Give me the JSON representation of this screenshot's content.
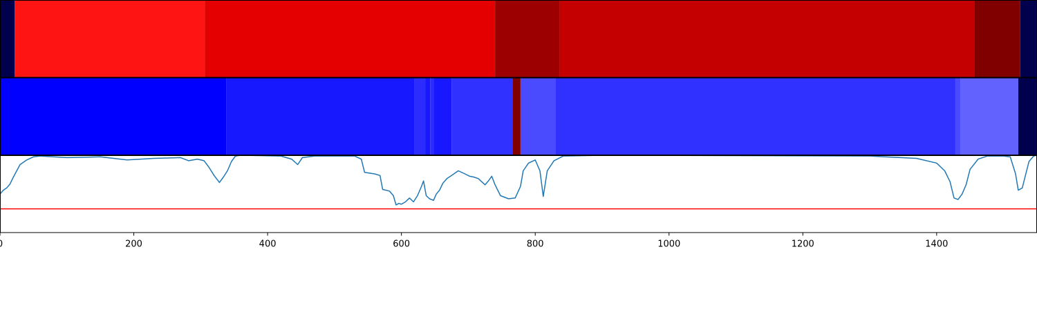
{
  "chart_data": {
    "type": "line",
    "xlim": [
      0,
      1550
    ],
    "xticks": [
      0,
      200,
      400,
      600,
      800,
      1000,
      1200,
      1400
    ],
    "grid": false,
    "legend": "none",
    "segment_tracks": [
      {
        "segments": [
          {
            "start": 0,
            "end": 22,
            "color": "#00004c"
          },
          {
            "start": 22,
            "end": 306,
            "color": "#ff1414"
          },
          {
            "start": 306,
            "end": 740,
            "color": "#e40000"
          },
          {
            "start": 740,
            "end": 836,
            "color": "#9c0000"
          },
          {
            "start": 836,
            "end": 1457,
            "color": "#c40000"
          },
          {
            "start": 1457,
            "end": 1525,
            "color": "#800000"
          },
          {
            "start": 1525,
            "end": 1550,
            "color": "#00004c"
          }
        ]
      },
      {
        "segments": [
          {
            "start": 0,
            "end": 338,
            "color": "#0000ff"
          },
          {
            "start": 338,
            "end": 619,
            "color": "#1818ff"
          },
          {
            "start": 619,
            "end": 636,
            "color": "#2c2cff"
          },
          {
            "start": 636,
            "end": 643,
            "color": "#1818ff"
          },
          {
            "start": 643,
            "end": 648,
            "color": "#2c2cff"
          },
          {
            "start": 648,
            "end": 675,
            "color": "#1818ff"
          },
          {
            "start": 675,
            "end": 766,
            "color": "#3030ff"
          },
          {
            "start": 766,
            "end": 778,
            "color": "#800000"
          },
          {
            "start": 778,
            "end": 830,
            "color": "#4a4aff"
          },
          {
            "start": 830,
            "end": 1428,
            "color": "#3030ff"
          },
          {
            "start": 1428,
            "end": 1436,
            "color": "#4a4aff"
          },
          {
            "start": 1436,
            "end": 1522,
            "color": "#6262ff"
          },
          {
            "start": 1522,
            "end": 1550,
            "color": "#00004c"
          }
        ]
      }
    ],
    "ylim": [
      0,
      1
    ],
    "threshold": {
      "y": 0.31,
      "color": "#ff0000"
    },
    "series": [
      {
        "color": "#1f77b4",
        "points": [
          [
            0,
            0.5
          ],
          [
            5,
            0.55
          ],
          [
            10,
            0.58
          ],
          [
            15,
            0.63
          ],
          [
            20,
            0.72
          ],
          [
            25,
            0.8
          ],
          [
            30,
            0.88
          ],
          [
            40,
            0.94
          ],
          [
            50,
            0.98
          ],
          [
            60,
            0.99
          ],
          [
            100,
            0.97
          ],
          [
            150,
            0.98
          ],
          [
            190,
            0.94
          ],
          [
            230,
            0.96
          ],
          [
            270,
            0.97
          ],
          [
            282,
            0.93
          ],
          [
            295,
            0.95
          ],
          [
            305,
            0.93
          ],
          [
            312,
            0.85
          ],
          [
            320,
            0.74
          ],
          [
            328,
            0.65
          ],
          [
            334,
            0.72
          ],
          [
            340,
            0.8
          ],
          [
            346,
            0.92
          ],
          [
            352,
            0.99
          ],
          [
            360,
            1.0
          ],
          [
            420,
            0.99
          ],
          [
            436,
            0.95
          ],
          [
            445,
            0.88
          ],
          [
            452,
            0.97
          ],
          [
            470,
            0.99
          ],
          [
            530,
            0.99
          ],
          [
            540,
            0.95
          ],
          [
            545,
            0.78
          ],
          [
            560,
            0.76
          ],
          [
            568,
            0.74
          ],
          [
            572,
            0.56
          ],
          [
            582,
            0.54
          ],
          [
            588,
            0.48
          ],
          [
            592,
            0.36
          ],
          [
            596,
            0.38
          ],
          [
            600,
            0.37
          ],
          [
            606,
            0.4
          ],
          [
            612,
            0.45
          ],
          [
            618,
            0.4
          ],
          [
            624,
            0.48
          ],
          [
            630,
            0.6
          ],
          [
            633,
            0.67
          ],
          [
            637,
            0.48
          ],
          [
            642,
            0.44
          ],
          [
            648,
            0.42
          ],
          [
            652,
            0.5
          ],
          [
            657,
            0.55
          ],
          [
            662,
            0.64
          ],
          [
            668,
            0.7
          ],
          [
            675,
            0.74
          ],
          [
            685,
            0.8
          ],
          [
            695,
            0.76
          ],
          [
            702,
            0.73
          ],
          [
            708,
            0.72
          ],
          [
            715,
            0.7
          ],
          [
            725,
            0.62
          ],
          [
            730,
            0.67
          ],
          [
            735,
            0.73
          ],
          [
            740,
            0.62
          ],
          [
            748,
            0.48
          ],
          [
            760,
            0.44
          ],
          [
            770,
            0.45
          ],
          [
            778,
            0.6
          ],
          [
            782,
            0.8
          ],
          [
            790,
            0.9
          ],
          [
            800,
            0.94
          ],
          [
            807,
            0.8
          ],
          [
            812,
            0.47
          ],
          [
            818,
            0.8
          ],
          [
            828,
            0.93
          ],
          [
            842,
            0.99
          ],
          [
            900,
            1.0
          ],
          [
            1300,
            0.99
          ],
          [
            1370,
            0.96
          ],
          [
            1400,
            0.9
          ],
          [
            1412,
            0.8
          ],
          [
            1420,
            0.66
          ],
          [
            1426,
            0.45
          ],
          [
            1432,
            0.43
          ],
          [
            1438,
            0.5
          ],
          [
            1444,
            0.62
          ],
          [
            1450,
            0.82
          ],
          [
            1462,
            0.95
          ],
          [
            1476,
            0.99
          ],
          [
            1500,
            0.99
          ],
          [
            1510,
            0.98
          ],
          [
            1518,
            0.76
          ],
          [
            1522,
            0.55
          ],
          [
            1528,
            0.58
          ],
          [
            1538,
            0.92
          ],
          [
            1545,
            0.99
          ],
          [
            1550,
            1.0
          ]
        ]
      }
    ]
  }
}
